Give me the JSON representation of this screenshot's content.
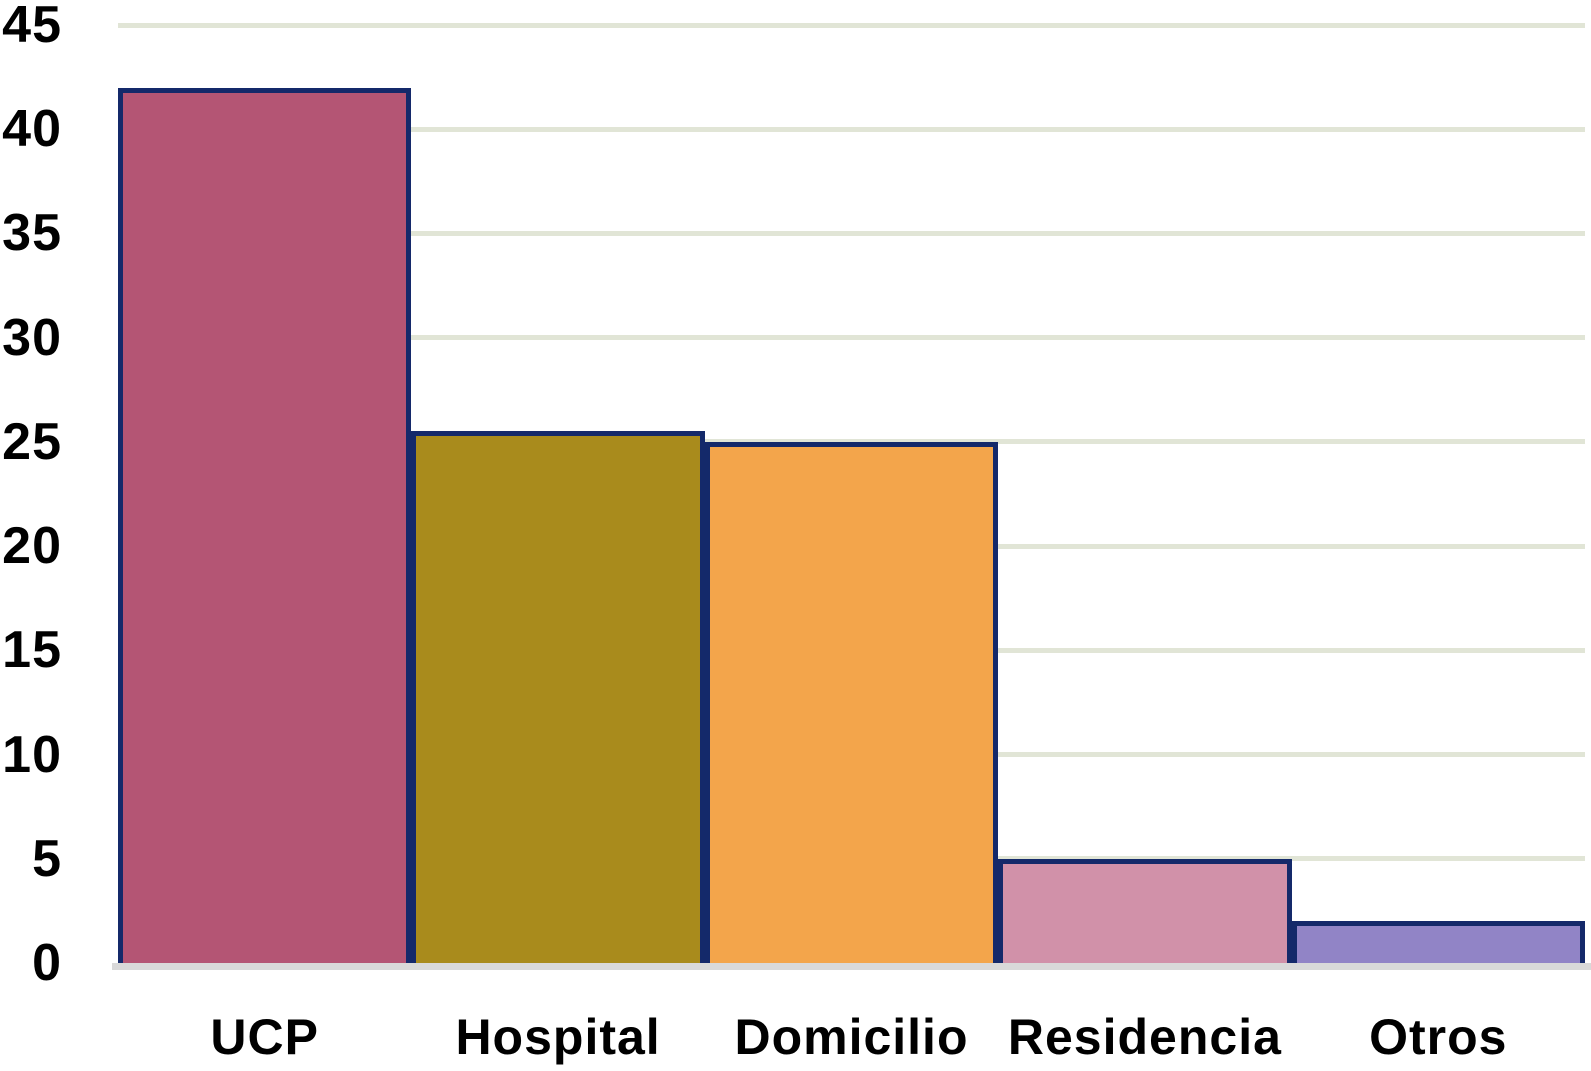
{
  "chart_data": {
    "type": "bar",
    "title": "",
    "xlabel": "",
    "ylabel": "",
    "categories": [
      "UCP",
      "Hospital",
      "Domicilio",
      "Residencia",
      "Otros"
    ],
    "values": [
      42,
      25.5,
      25,
      5,
      2
    ],
    "ylim": [
      0,
      45
    ],
    "yticks": [
      0,
      5,
      10,
      15,
      20,
      25,
      30,
      35,
      40,
      45
    ],
    "grid": "horizontal",
    "legend_position": "none",
    "colors": {
      "bars": [
        "#b45574",
        "#a98b1c",
        "#f3a54b",
        "#d191a9",
        "#9184c6"
      ],
      "bar_border": "#14296a",
      "gridline": "#e1e5d6",
      "baseline_band": "#d9d9d9",
      "text": "#000000",
      "background": "#ffffff"
    }
  }
}
